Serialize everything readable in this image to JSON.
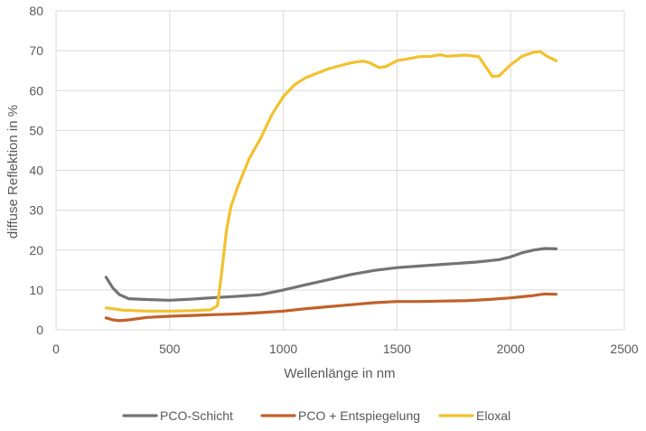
{
  "chart_data": {
    "type": "line",
    "title": "",
    "xlabel": "Wellenlänge in nm",
    "ylabel": "diffuse Reflektion in %",
    "xlim": [
      0,
      2500
    ],
    "ylim": [
      0,
      80
    ],
    "xticks": [
      0,
      500,
      1000,
      1500,
      2000,
      2500
    ],
    "yticks": [
      0,
      10,
      20,
      30,
      40,
      50,
      60,
      70,
      80
    ],
    "xtick_labels": [
      "0",
      "500",
      "1000",
      "1500",
      "2000",
      "2500"
    ],
    "ytick_labels": [
      "0",
      "10",
      "20",
      "30",
      "40",
      "50",
      "60",
      "70",
      "80"
    ],
    "grid": true,
    "legend_position": "bottom",
    "series": [
      {
        "name": "PCO-Schicht",
        "color": "#737373",
        "x": [
          220,
          250,
          280,
          320,
          400,
          500,
          600,
          700,
          800,
          900,
          1000,
          1100,
          1200,
          1300,
          1400,
          1500,
          1600,
          1700,
          1800,
          1850,
          1900,
          1950,
          2000,
          2050,
          2100,
          2150,
          2200
        ],
        "y": [
          13.2,
          10.5,
          8.8,
          7.8,
          7.6,
          7.4,
          7.7,
          8.1,
          8.4,
          8.8,
          10.0,
          11.3,
          12.6,
          13.9,
          14.9,
          15.6,
          16.0,
          16.4,
          16.8,
          17.0,
          17.3,
          17.6,
          18.3,
          19.3,
          20.0,
          20.4,
          20.3
        ]
      },
      {
        "name": "PCO + Entspiegelung",
        "color": "#c0612b",
        "x": [
          220,
          250,
          280,
          320,
          400,
          500,
          600,
          700,
          800,
          900,
          1000,
          1100,
          1200,
          1300,
          1400,
          1500,
          1600,
          1700,
          1800,
          1900,
          2000,
          2050,
          2100,
          2150,
          2200
        ],
        "y": [
          3.0,
          2.5,
          2.3,
          2.5,
          3.1,
          3.4,
          3.6,
          3.8,
          4.0,
          4.3,
          4.7,
          5.3,
          5.8,
          6.3,
          6.8,
          7.1,
          7.1,
          7.2,
          7.3,
          7.6,
          8.0,
          8.3,
          8.6,
          9.0,
          8.9
        ]
      },
      {
        "name": "Eloxal",
        "color": "#f2c12e",
        "x": [
          220,
          300,
          400,
          500,
          600,
          680,
          710,
          730,
          750,
          770,
          800,
          850,
          900,
          950,
          1000,
          1050,
          1100,
          1200,
          1300,
          1350,
          1380,
          1420,
          1450,
          1500,
          1600,
          1650,
          1690,
          1720,
          1800,
          1860,
          1890,
          1920,
          1950,
          2000,
          2050,
          2100,
          2130,
          2160,
          2200
        ],
        "y": [
          5.5,
          4.9,
          4.7,
          4.7,
          4.8,
          5.0,
          6.0,
          15.0,
          25.0,
          31.0,
          36.0,
          43.0,
          48.0,
          54.0,
          58.5,
          61.5,
          63.3,
          65.5,
          67.0,
          67.4,
          67.0,
          65.8,
          66.0,
          67.5,
          68.5,
          68.6,
          69.0,
          68.6,
          68.9,
          68.5,
          66.0,
          63.5,
          63.7,
          66.5,
          68.6,
          69.6,
          69.8,
          68.6,
          67.5
        ]
      }
    ]
  }
}
